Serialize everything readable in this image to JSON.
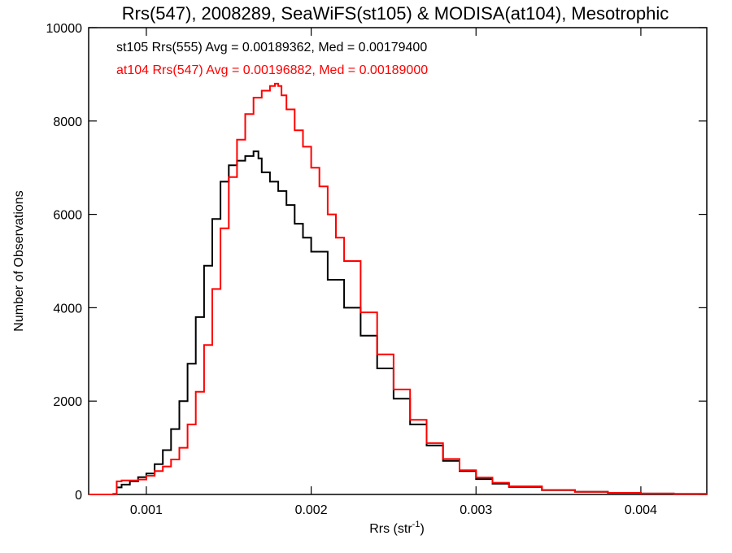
{
  "chart_data": {
    "type": "line",
    "step": true,
    "title": "Rrs(547), 2008289, SeaWiFS(st105) & MODISA(at104), Mesotrophic",
    "xlabel": "Rrs (str",
    "xlabel_sup": "-1",
    "xlabel_close": ")",
    "ylabel": "Number of Observations",
    "xlim": [
      0.00065,
      0.0044
    ],
    "ylim": [
      0,
      10000
    ],
    "x_ticks": [
      {
        "value": 0.001,
        "label": "0.001"
      },
      {
        "value": 0.002,
        "label": "0.002"
      },
      {
        "value": 0.003,
        "label": "0.003"
      },
      {
        "value": 0.004,
        "label": "0.004"
      }
    ],
    "y_ticks": [
      {
        "value": 0,
        "label": "0"
      },
      {
        "value": 2000,
        "label": "2000"
      },
      {
        "value": 4000,
        "label": "4000"
      },
      {
        "value": 6000,
        "label": "6000"
      },
      {
        "value": 8000,
        "label": "8000"
      },
      {
        "value": 10000,
        "label": "10000"
      }
    ],
    "legend": [
      {
        "text": "st105 Rrs(555) Avg = 0.00189362, Med = 0.00179400",
        "color": "#000000"
      },
      {
        "text": "at104 Rrs(547) Avg = 0.00196882, Med = 0.00189000",
        "color": "#ff0000"
      }
    ],
    "series": [
      {
        "color": "#000000",
        "x": [
          0.00065,
          0.00075,
          0.0008,
          0.00082,
          0.00085,
          0.0009,
          0.00095,
          0.001,
          0.00105,
          0.0011,
          0.00115,
          0.0012,
          0.00125,
          0.0013,
          0.00135,
          0.0014,
          0.00145,
          0.0015,
          0.00155,
          0.0016,
          0.00165,
          0.00168,
          0.0017,
          0.00175,
          0.0018,
          0.00185,
          0.0019,
          0.00195,
          0.002,
          0.0021,
          0.0022,
          0.0023,
          0.0024,
          0.0025,
          0.0026,
          0.0027,
          0.0028,
          0.0029,
          0.003,
          0.0031,
          0.0032,
          0.0034,
          0.0036,
          0.0038,
          0.004,
          0.0042,
          0.0044
        ],
        "y": [
          0,
          0,
          10,
          150,
          210,
          280,
          370,
          450,
          650,
          950,
          1400,
          2000,
          2800,
          3800,
          4900,
          5900,
          6700,
          7050,
          7150,
          7250,
          7350,
          7200,
          6900,
          6700,
          6500,
          6200,
          5800,
          5500,
          5200,
          4600,
          4000,
          3400,
          2700,
          2050,
          1500,
          1050,
          720,
          500,
          330,
          230,
          160,
          90,
          55,
          35,
          20,
          10,
          5
        ]
      },
      {
        "color": "#ff0000",
        "x": [
          0.00065,
          0.00075,
          0.0008,
          0.00082,
          0.00085,
          0.0009,
          0.00095,
          0.001,
          0.00105,
          0.0011,
          0.00115,
          0.0012,
          0.00125,
          0.0013,
          0.00135,
          0.0014,
          0.00145,
          0.0015,
          0.00155,
          0.0016,
          0.00165,
          0.0017,
          0.00175,
          0.00178,
          0.0018,
          0.00182,
          0.00185,
          0.0019,
          0.00195,
          0.002,
          0.00205,
          0.0021,
          0.00215,
          0.0022,
          0.0023,
          0.0024,
          0.0025,
          0.0026,
          0.0027,
          0.0028,
          0.0029,
          0.003,
          0.0031,
          0.0032,
          0.0034,
          0.0036,
          0.0038,
          0.004,
          0.0042,
          0.0044
        ],
        "y": [
          0,
          0,
          10,
          280,
          300,
          300,
          320,
          400,
          500,
          600,
          750,
          1000,
          1500,
          2200,
          3200,
          4400,
          5700,
          6800,
          7600,
          8150,
          8500,
          8650,
          8750,
          8800,
          8750,
          8550,
          8250,
          7800,
          7450,
          7000,
          6600,
          6000,
          5500,
          5000,
          3900,
          3000,
          2250,
          1600,
          1100,
          760,
          520,
          360,
          250,
          175,
          95,
          55,
          35,
          20,
          10,
          5
        ]
      }
    ]
  }
}
